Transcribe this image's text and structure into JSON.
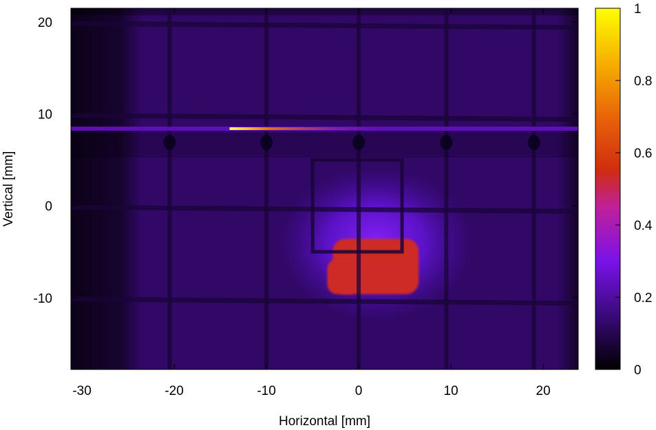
{
  "chart_data": {
    "type": "heatmap",
    "title": "",
    "xlabel": "Horizontal [mm]",
    "ylabel": "Vertical [mm]",
    "xlim": [
      -31.2,
      23.8
    ],
    "ylim": [
      -17.8,
      21.5
    ],
    "x_ticks": [
      -30,
      -20,
      -10,
      0,
      10,
      20
    ],
    "y_ticks": [
      20,
      10,
      0,
      -10
    ],
    "colorbar": {
      "range": [
        0,
        1
      ],
      "ticks": [
        0,
        0.2,
        0.4,
        0.6,
        0.8,
        1
      ],
      "tick_labels": [
        "0",
        "0.2",
        "0.4",
        "0.6",
        "0.8",
        "1"
      ],
      "palette": [
        "#000000",
        "#3a0a7a",
        "#7a12e8",
        "#c0209a",
        "#d02c10",
        "#e86408",
        "#f6b000",
        "#ffff00"
      ]
    },
    "background_level": 0.12,
    "grid_wires": {
      "vertical_x": [
        -20.5,
        -10,
        0,
        9.5,
        19
      ],
      "horizontal_y": [
        20,
        10,
        0,
        -10
      ]
    },
    "hot_line": {
      "y": 8.4,
      "x_start": -31.2,
      "x_end": 23.8,
      "level": 0.22,
      "peak_x_start": -14,
      "peak_x_end": -4,
      "peak_level": 0.55
    },
    "window_frame": {
      "x_min": -5,
      "x_max": 4.7,
      "y_min": -5,
      "y_max": 5
    },
    "beam_spot": {
      "x_min": -2.8,
      "x_max": 6.5,
      "y_min": -9.6,
      "y_max": -3.6,
      "level": 0.55
    }
  }
}
